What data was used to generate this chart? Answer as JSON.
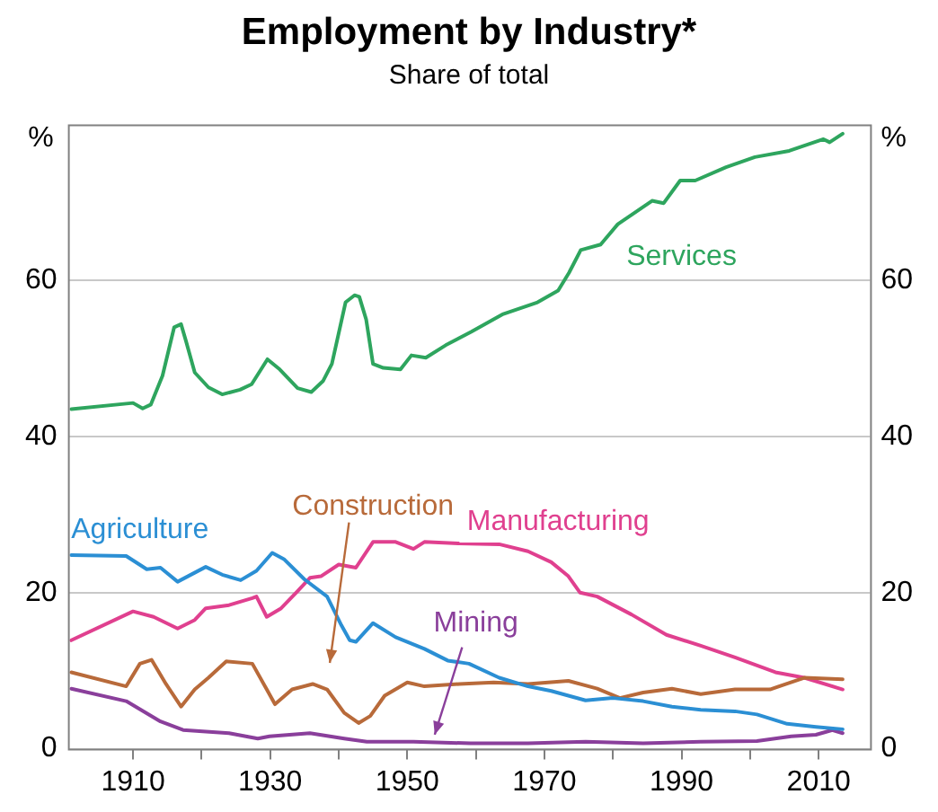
{
  "chart_data": {
    "type": "line",
    "title": "Employment by Industry*",
    "subtitle": "Share of total",
    "ylabel": "%",
    "y2label": "%",
    "xlim": [
      1900.5,
      2017.5
    ],
    "xticks": [
      1910,
      {
        "value": 1920,
        "label": null
      },
      1930,
      {
        "value": 1940,
        "label": null
      },
      1950,
      {
        "value": 1960,
        "label": null
      },
      1970,
      {
        "value": 1980,
        "label": null
      },
      1990,
      {
        "value": 2000,
        "label": null
      },
      2010
    ],
    "ylim": [
      0,
      80
    ],
    "yticks": [
      0,
      20,
      40,
      60
    ],
    "y2lim": [
      0,
      80
    ],
    "y2ticks": [
      0,
      20,
      40,
      60
    ],
    "grid": "y",
    "legend": false,
    "marker": "none",
    "line_style": "solid",
    "series": [
      {
        "name": "Services",
        "color": "#2ea55e",
        "x": [
          1901,
          1910,
          1911.4,
          1912.6,
          1914.3,
          1916,
          1917,
          1917.7,
          1919,
          1921,
          1923,
          1925.6,
          1927.3,
          1929.6,
          1931.4,
          1934,
          1936,
          1937.7,
          1939,
          1941,
          1942.3,
          1943,
          1944,
          1945,
          1946.5,
          1949,
          1950.6,
          1952.7,
          1955.6,
          1959.3,
          1964,
          1969,
          1972,
          1973.6,
          1975.3,
          1978.2,
          1980.7,
          1985.7,
          1987.4,
          1989.8,
          1992,
          1996.5,
          2000.7,
          2005.7,
          2010.7,
          2011.6,
          2013.5
        ],
        "values": [
          43.5,
          44.3,
          43.6,
          44.1,
          47.8,
          54,
          54.4,
          52.3,
          48.2,
          46.3,
          45.4,
          46,
          46.7,
          49.9,
          48.6,
          46.2,
          45.7,
          47.1,
          49.3,
          57.2,
          58.1,
          57.9,
          55,
          49.3,
          48.8,
          48.6,
          50.4,
          50.1,
          51.7,
          53.4,
          55.7,
          57.2,
          58.7,
          61,
          63.9,
          64.6,
          67.2,
          70.2,
          69.9,
          72.8,
          72.8,
          74.5,
          75.8,
          76.6,
          78.1,
          77.7,
          78.8
        ]
      },
      {
        "name": "Agriculture",
        "color": "#2b8fd4",
        "x": [
          1901,
          1909,
          1912,
          1914,
          1916.5,
          1920.6,
          1923,
          1925.7,
          1928,
          1930.3,
          1932,
          1935,
          1938.3,
          1940.4,
          1941.6,
          1942.5,
          1945,
          1948.3,
          1952.5,
          1955.9,
          1959,
          1963.4,
          1967.6,
          1971,
          1976,
          1980,
          1984.4,
          1988.6,
          1992.8,
          1997.8,
          2001,
          2005.4,
          2009.6,
          2013.5
        ],
        "values": [
          24.8,
          24.7,
          23,
          23.2,
          21.4,
          23.3,
          22.3,
          21.6,
          22.8,
          25.1,
          24.3,
          21.7,
          19.5,
          15.8,
          13.9,
          13.7,
          16.1,
          14.3,
          12.8,
          11.3,
          10.9,
          9.1,
          8,
          7.4,
          6.2,
          6.5,
          6.1,
          5.4,
          5,
          4.8,
          4.4,
          3.2,
          2.8,
          2.5
        ]
      },
      {
        "name": "Construction",
        "color": "#b86a3a",
        "x": [
          1901,
          1909,
          1911,
          1912.7,
          1914.8,
          1917,
          1919,
          1921,
          1923.6,
          1927.4,
          1929.5,
          1930.7,
          1933.2,
          1936.2,
          1938.3,
          1940.8,
          1942.9,
          1944.6,
          1946.7,
          1950,
          1952.5,
          1957.6,
          1962.6,
          1967.6,
          1973.5,
          1977.7,
          1981,
          1984.4,
          1988.6,
          1992.8,
          1997.8,
          2002.9,
          2007.9,
          2013.5
        ],
        "values": [
          9.8,
          8,
          10.9,
          11.4,
          8.3,
          5.4,
          7.6,
          9.1,
          11.2,
          10.9,
          7.6,
          5.7,
          7.6,
          8.3,
          7.6,
          4.6,
          3.3,
          4.2,
          6.8,
          8.5,
          8,
          8.3,
          8.5,
          8.3,
          8.7,
          7.7,
          6.5,
          7.2,
          7.7,
          7,
          7.6,
          7.6,
          9.1,
          8.9
        ]
      },
      {
        "name": "Manufacturing",
        "color": "#e0408f",
        "x": [
          1901,
          1910,
          1913,
          1916.5,
          1919,
          1920.6,
          1924,
          1927.4,
          1928,
          1929.5,
          1931.6,
          1934,
          1935.8,
          1937.4,
          1940,
          1942.5,
          1945,
          1948.3,
          1950.9,
          1952.5,
          1957.6,
          1963.4,
          1967.6,
          1971,
          1973.5,
          1975.2,
          1977.7,
          1982.7,
          1987.8,
          1992.8,
          1997.8,
          2003.7,
          2007.9,
          2013.5
        ],
        "values": [
          13.9,
          17.6,
          16.9,
          15.4,
          16.5,
          18,
          18.4,
          19.3,
          19.5,
          16.9,
          18,
          20.2,
          21.9,
          22.1,
          23.6,
          23.2,
          26.5,
          26.5,
          25.6,
          26.5,
          26.3,
          26.2,
          25.3,
          23.9,
          22.1,
          20,
          19.5,
          17.2,
          14.6,
          13.2,
          11.7,
          9.8,
          9.1,
          7.6
        ]
      },
      {
        "name": "Mining",
        "color": "#8a3f9b",
        "x": [
          1901,
          1909,
          1914,
          1917.3,
          1924,
          1928.2,
          1929.9,
          1935.8,
          1940.8,
          1944.1,
          1950.9,
          1959.2,
          1967.6,
          1976,
          1984.4,
          1992.8,
          2001,
          2006,
          2009.6,
          2012,
          2013.5
        ],
        "values": [
          7.7,
          6.1,
          3.5,
          2.4,
          2,
          1.3,
          1.6,
          2,
          1.3,
          0.9,
          0.9,
          0.7,
          0.7,
          0.9,
          0.7,
          0.9,
          1,
          1.6,
          1.8,
          2.4,
          2
        ]
      }
    ]
  }
}
